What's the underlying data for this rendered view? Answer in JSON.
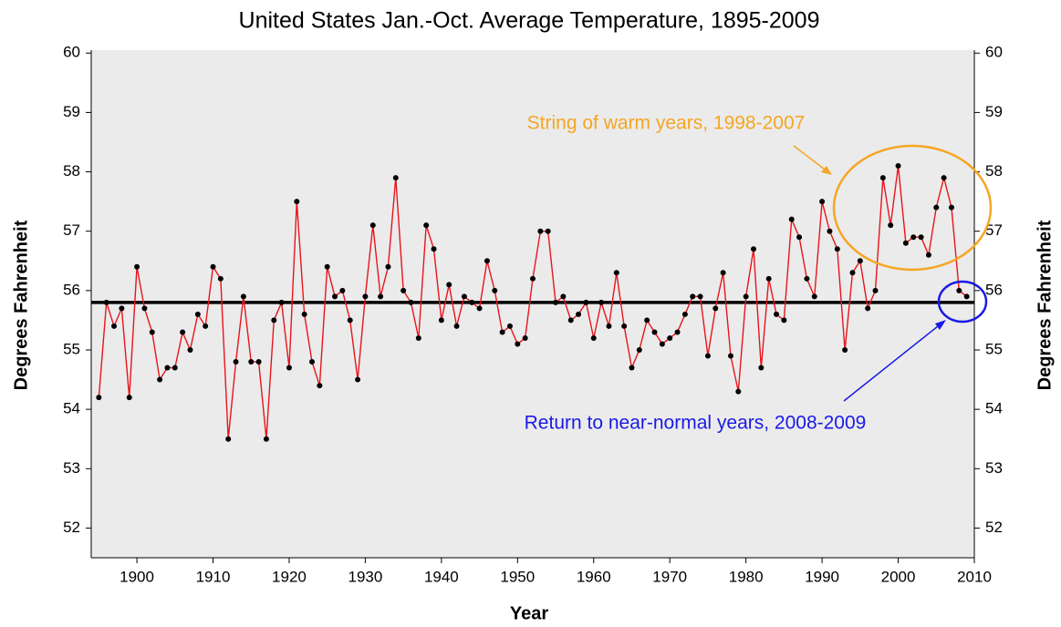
{
  "chart_data": {
    "type": "line",
    "title": "United States Jan.-Oct. Average Temperature, 1895-2009",
    "x_label": "Year",
    "y_label": "Degrees Fahrenheit",
    "annotations": [
      "String of warm years, 1998-2007",
      "Return to near-normal years, 2008-2009"
    ],
    "x": [
      1895,
      1896,
      1897,
      1898,
      1899,
      1900,
      1901,
      1902,
      1903,
      1904,
      1905,
      1906,
      1907,
      1908,
      1909,
      1910,
      1911,
      1912,
      1913,
      1914,
      1915,
      1916,
      1917,
      1918,
      1919,
      1920,
      1921,
      1922,
      1923,
      1924,
      1925,
      1926,
      1927,
      1928,
      1929,
      1930,
      1931,
      1932,
      1933,
      1934,
      1935,
      1936,
      1937,
      1938,
      1939,
      1940,
      1941,
      1942,
      1943,
      1944,
      1945,
      1946,
      1947,
      1948,
      1949,
      1950,
      1951,
      1952,
      1953,
      1954,
      1955,
      1956,
      1957,
      1958,
      1959,
      1960,
      1961,
      1962,
      1963,
      1964,
      1965,
      1966,
      1967,
      1968,
      1969,
      1970,
      1971,
      1972,
      1973,
      1974,
      1975,
      1976,
      1977,
      1978,
      1979,
      1980,
      1981,
      1982,
      1983,
      1984,
      1985,
      1986,
      1987,
      1988,
      1989,
      1990,
      1991,
      1992,
      1993,
      1994,
      1995,
      1996,
      1997,
      1998,
      1999,
      2000,
      2001,
      2002,
      2003,
      2004,
      2005,
      2006,
      2007,
      2008,
      2009
    ],
    "series": [
      {
        "color": "#e8141c",
        "marker_color": "#000000",
        "values": [
          54.2,
          55.8,
          55.4,
          55.7,
          54.2,
          56.4,
          55.7,
          55.3,
          54.5,
          54.7,
          54.7,
          55.3,
          55.0,
          55.6,
          55.4,
          56.4,
          56.2,
          53.5,
          54.8,
          55.9,
          54.8,
          54.8,
          53.5,
          55.5,
          55.8,
          54.7,
          57.5,
          55.6,
          54.8,
          54.4,
          56.4,
          55.9,
          56.0,
          55.5,
          54.5,
          55.9,
          57.1,
          55.9,
          56.4,
          57.9,
          56.0,
          55.8,
          55.2,
          57.1,
          56.7,
          55.5,
          56.1,
          55.4,
          55.9,
          55.8,
          55.7,
          56.5,
          56.0,
          55.3,
          55.4,
          55.1,
          55.2,
          56.2,
          57.0,
          57.0,
          55.8,
          55.9,
          55.5,
          55.6,
          55.8,
          55.2,
          55.8,
          55.4,
          56.3,
          55.4,
          54.7,
          55.0,
          55.5,
          55.3,
          55.1,
          55.2,
          55.3,
          55.6,
          55.9,
          55.9,
          54.9,
          55.7,
          56.3,
          54.9,
          54.3,
          55.9,
          56.7,
          54.7,
          56.2,
          55.6,
          55.5,
          57.2,
          56.9,
          56.2,
          55.9,
          57.5,
          57.0,
          56.7,
          55.0,
          56.3,
          56.5,
          55.7,
          56.0,
          57.9,
          57.1,
          58.1,
          56.8,
          56.9,
          56.9,
          56.6,
          57.4,
          57.9,
          57.4,
          56.0,
          55.9
        ]
      }
    ],
    "reference_line": 55.8,
    "xlim": [
      1894,
      2010
    ],
    "xticks": [
      1900,
      1910,
      1920,
      1930,
      1940,
      1950,
      1960,
      1970,
      1980,
      1990,
      2000,
      2010
    ],
    "ylim": [
      51.5,
      60.05
    ],
    "yticks": [
      52,
      53,
      54,
      55,
      56,
      57,
      58,
      59,
      60
    ],
    "background": "#ebebeb"
  }
}
